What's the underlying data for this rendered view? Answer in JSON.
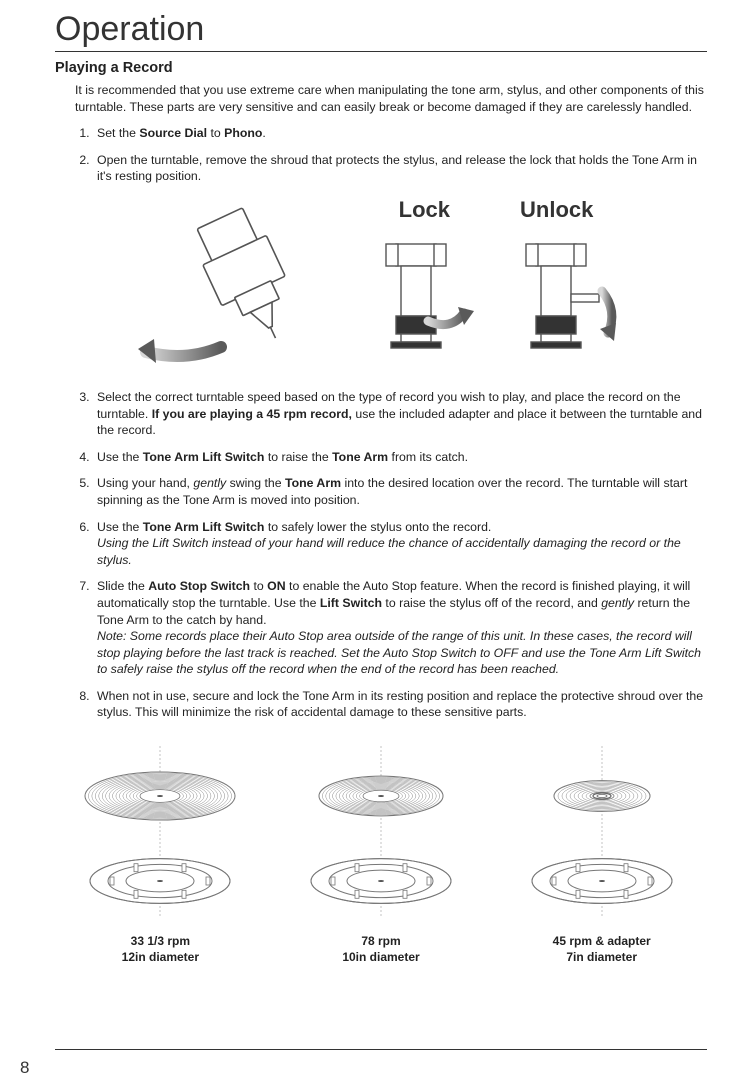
{
  "title": "Operation",
  "section": "Playing a Record",
  "intro": "It is recommended that you use extreme care when manipulating the tone arm, stylus, and other components of this turntable. These parts are very sensitive and can easily break or become damaged if they are carelessly handled.",
  "lockLabels": {
    "lock": "Lock",
    "unlock": "Unlock"
  },
  "step1_a": "Set the ",
  "step1_b": "Source Dial",
  "step1_c": " to ",
  "step1_d": "Phono",
  "step1_e": ".",
  "step2": "Open the turntable, remove the shroud that protects the stylus, and release the lock that holds the Tone Arm in it's resting position.",
  "step3_a": "Select the correct turntable speed based on the type of record you wish to play, and place the record on the turntable. ",
  "step3_b": "If you are playing a 45 rpm record,",
  "step3_c": " use the included adapter and place it between the turntable and the record.",
  "step4_a": "Use the ",
  "step4_b": "Tone Arm Lift Switch",
  "step4_c": " to raise the ",
  "step4_d": "Tone Arm",
  "step4_e": " from its catch.",
  "step5_a": "Using your hand, ",
  "step5_b": "gently",
  "step5_c": " swing the ",
  "step5_d": "Tone Arm",
  "step5_e": " into the desired location over the record. The turntable will start spinning as the Tone Arm is moved into position.",
  "step6_a": "Use the ",
  "step6_b": "Tone Arm Lift Switch",
  "step6_c": " to safely lower the stylus onto the record.",
  "step6_d": "Using the Lift Switch instead of your hand will reduce the chance of accidentally damaging the record or the stylus.",
  "step7_a": "Slide the ",
  "step7_b": "Auto Stop Switch",
  "step7_c": " to ",
  "step7_d": "ON",
  "step7_e": " to enable the Auto Stop feature. When the record is finished playing, it will automatically stop the turntable. Use the ",
  "step7_f": "Lift Switch",
  "step7_g": " to raise the stylus off of the record, and ",
  "step7_h": "gently",
  "step7_i": " return the Tone Arm to the catch by hand.",
  "step7_note": "Note: Some records place their Auto Stop area outside of the range of this unit. In these cases, the record will stop playing before the last track is reached. Set the Auto Stop Switch to OFF and use the Tone Arm Lift Switch to safely raise the stylus off the record when the end of the record has been reached.",
  "step8": "When not in use, secure and lock the Tone Arm in its resting position and replace the protective shroud over the stylus. This will minimize the risk of accidental damage to these sensitive parts.",
  "records": [
    {
      "line1": "33 1/3 rpm",
      "line2": "12in diameter",
      "topR": 75,
      "inner": 20,
      "grooves": 16
    },
    {
      "line1": "78 rpm",
      "line2": "10in diameter",
      "topR": 62,
      "inner": 18,
      "grooves": 13
    },
    {
      "line1": "45 rpm & adapter",
      "line2": "7in diameter",
      "topR": 48,
      "inner": 12,
      "grooves": 9,
      "adapter": true
    }
  ],
  "pageNumber": "8",
  "colors": {
    "stroke": "#545454",
    "light": "#9a9a9a",
    "grad1": "#bcbcbc",
    "grad2": "#6d6d6d"
  }
}
